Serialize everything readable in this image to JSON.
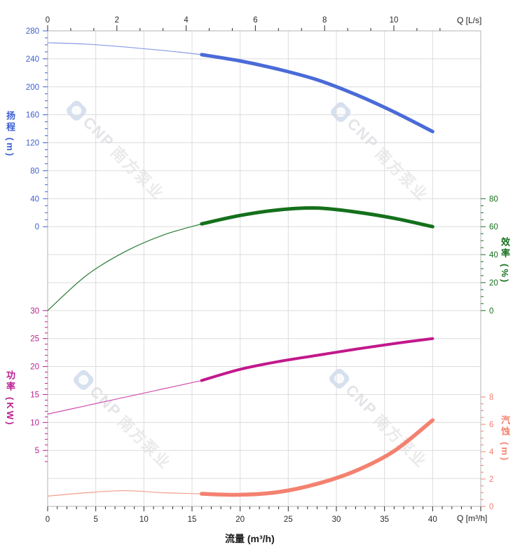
{
  "watermark": {
    "brand": "CNP",
    "text": "南方泵业"
  },
  "chart_data": {
    "type": "line",
    "title": "",
    "x_label": "流量 (m³/h)",
    "x": [
      0,
      4,
      8,
      12,
      16,
      20,
      24,
      28,
      32,
      36,
      40
    ],
    "duty_split_x": 16,
    "series": [
      {
        "name": "扬程曲线 H-Q",
        "axis": "head",
        "color": "#4a6bd8",
        "thin_color": "#8a9ae3",
        "thick_width": 5,
        "y": [
          263,
          261,
          257,
          252,
          246,
          237,
          225,
          210,
          189,
          164,
          136
        ]
      },
      {
        "name": "效率曲线 η-Q",
        "axis": "eff",
        "color": "#15701c",
        "thin_color": "#2c7d33",
        "thick_width": 5,
        "y": [
          0,
          25,
          42,
          54,
          62,
          68,
          72,
          73.3,
          70.5,
          66,
          60
        ]
      },
      {
        "name": "功率曲线 P-Q",
        "axis": "power",
        "color": "#c2188c",
        "thin_color": "#cf4fae",
        "thick_width": 4,
        "y": [
          11.5,
          13.0,
          14.5,
          16.0,
          17.5,
          19.5,
          20.9,
          22.0,
          23.1,
          24.1,
          25.0
        ]
      },
      {
        "name": "汽蚀曲线 NPSH-Q",
        "axis": "npsh",
        "color": "#f48170",
        "thin_color": "#f49c8d",
        "thick_width": 5.5,
        "y": [
          0.75,
          1.0,
          1.15,
          1.0,
          0.92,
          0.85,
          1.05,
          1.65,
          2.6,
          4.05,
          6.3
        ]
      }
    ],
    "axes": {
      "x_bottom": {
        "label": "流量 (m³/h)",
        "corner_label": "Q [m³/h]",
        "min": 0,
        "max": 45,
        "ticks": [
          0,
          5,
          10,
          15,
          20,
          25,
          30,
          35,
          40
        ],
        "minor_step": 1,
        "color": "#2a2a2a"
      },
      "x_top": {
        "corner_label": "Q [L/s]",
        "min": 0,
        "max": 12.5,
        "ticks": [
          0,
          2,
          4,
          6,
          8,
          10
        ],
        "minor_divisions": 3,
        "tick_end": 11.4,
        "color": "#2a2a2a"
      },
      "head": {
        "title": "扬程",
        "unit": "(m)",
        "side": "left",
        "min": 0,
        "max": 280,
        "ticks": [
          0,
          40,
          80,
          120,
          160,
          200,
          240,
          280
        ],
        "minor_step": 10,
        "color": "#3c5fd3"
      },
      "eff": {
        "title": "效率",
        "unit": "(%)",
        "side": "right",
        "min": 0,
        "max": 80,
        "ticks": [
          0,
          20,
          40,
          60,
          80
        ],
        "minor_step": 5,
        "color": "#15701c"
      },
      "power": {
        "title": "功率",
        "unit": "(KW)",
        "side": "left",
        "min": 3,
        "max": 30,
        "ticks": [
          5,
          10,
          15,
          20,
          25,
          30
        ],
        "minor_step": 1,
        "color": "#bb1f92"
      },
      "npsh": {
        "title": "汽蚀",
        "unit": "(m)",
        "side": "right",
        "min": 0,
        "max": 8,
        "ticks": [
          0,
          2,
          4,
          6,
          8
        ],
        "minor_step": 0.5,
        "color": "#f48170"
      }
    },
    "grid": true,
    "legend_position": "none"
  }
}
